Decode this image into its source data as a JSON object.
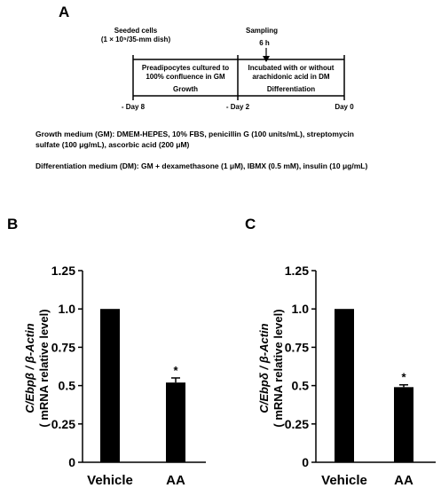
{
  "panel_a": {
    "letter": "A",
    "seeded_label": "Seeded cells",
    "seeded_density": "(1 × 10⁵/35-mm dish)",
    "sampling_label": "Sampling",
    "sampling_time": "6 h",
    "growth_desc_1": "Preadipocytes cultured to",
    "growth_desc_2": "100% confluence in GM",
    "growth_phase": "Growth",
    "diff_desc_1": "Incubated with or without",
    "diff_desc_2": "arachidonic acid in DM",
    "diff_phase": "Differentiation",
    "day_start": "- Day 8",
    "day_mid": "- Day 2",
    "day_end": "Day 0",
    "gm_line_1": "Growth medium (GM): DMEM-HEPES, 10% FBS, penicillin G (100 units/mL), streptomycin",
    "gm_line_2": "sulfate (100 μg/mL), ascorbic acid (200 μM)",
    "dm_line": "Differentiation medium (DM): GM + dexamethasone (1 μM), IBMX (0.5 mM), insulin (10 μg/mL)"
  },
  "chart_data": [
    {
      "type": "bar",
      "panel": "B",
      "ylabel_gene": "C/Ebpβ / β-Actin",
      "ylabel_sub": "( mRNA relative level)",
      "categories": [
        "Vehicle",
        "AA"
      ],
      "values": [
        1.0,
        0.52
      ],
      "errors": [
        0,
        0.03
      ],
      "significance": [
        "",
        "*"
      ],
      "yticks": [
        "0",
        "0.25",
        "0.5",
        "0.75",
        "1.0",
        "1.25"
      ],
      "ylim": [
        0,
        1.25
      ],
      "bar_color": "#000000"
    },
    {
      "type": "bar",
      "panel": "C",
      "ylabel_gene": "C/Ebpδ / β-Actin",
      "ylabel_sub": "( mRNA relative level)",
      "categories": [
        "Vehicle",
        "AA"
      ],
      "values": [
        1.0,
        0.49
      ],
      "errors": [
        0,
        0.015
      ],
      "significance": [
        "",
        "*"
      ],
      "yticks": [
        "0",
        "0.25",
        "0.5",
        "0.75",
        "1.0",
        "1.25"
      ],
      "ylim": [
        0,
        1.25
      ],
      "bar_color": "#000000"
    }
  ]
}
